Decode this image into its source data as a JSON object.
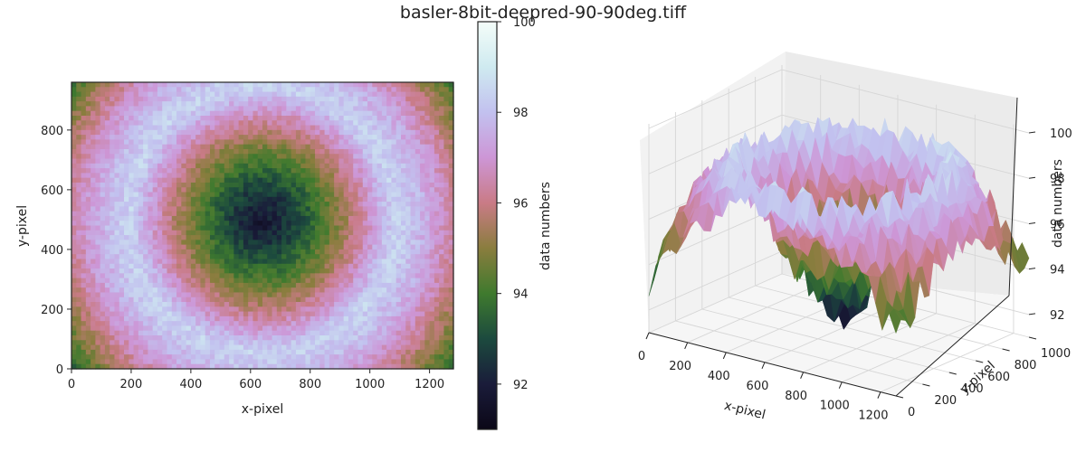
{
  "title": "basler-8bit-deepred-90-90deg.tiff",
  "colormap": {
    "name": "cubehelix-like",
    "stops": [
      {
        "v": 91,
        "c": "#0b0717"
      },
      {
        "v": 92,
        "c": "#1a1c3a"
      },
      {
        "v": 93,
        "c": "#1c4a3e"
      },
      {
        "v": 94,
        "c": "#3f7a2e"
      },
      {
        "v": 95,
        "c": "#8a7d3e"
      },
      {
        "v": 96,
        "c": "#c97b86"
      },
      {
        "v": 97,
        "c": "#cd96d6"
      },
      {
        "v": 98,
        "c": "#c2c1ef"
      },
      {
        "v": 99,
        "c": "#cfeaf0"
      },
      {
        "v": 100,
        "c": "#f4fdf9"
      }
    ]
  },
  "chart_data": [
    {
      "type": "heatmap",
      "xlabel": "x-pixel",
      "ylabel": "y-pixel",
      "xticks": [
        0,
        200,
        400,
        600,
        800,
        1000,
        1200
      ],
      "yticks": [
        0,
        200,
        400,
        600,
        800
      ],
      "xlim": [
        0,
        1280
      ],
      "ylim": [
        0,
        960
      ],
      "center": [
        640,
        500
      ],
      "center_value": 91.8,
      "ring_radius": 440,
      "ring_value": 98.4,
      "corner_value": 92.5,
      "colorbar": {
        "label": "data numbers",
        "ticks": [
          92,
          94,
          96,
          98,
          100
        ],
        "range": [
          91,
          100
        ]
      }
    },
    {
      "type": "surface",
      "xlabel": "x-pixel",
      "ylabel": "y-pixel",
      "zlabel": "data numbers",
      "xticks": [
        0,
        200,
        400,
        600,
        800,
        1000,
        1200
      ],
      "yticks": [
        0,
        200,
        400,
        600,
        800,
        1000
      ],
      "zticks": [
        92,
        94,
        96,
        98,
        100
      ],
      "zlim": [
        91,
        100.2
      ]
    }
  ]
}
